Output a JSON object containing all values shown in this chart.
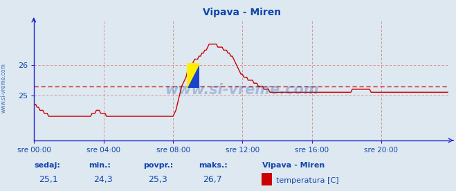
{
  "title": "Vipava - Miren",
  "bg_color": "#dde8f0",
  "plot_bg_color": "#dde8f0",
  "line_color": "#cc0000",
  "grid_color": "#e08080",
  "avg_line_color": "#cc0000",
  "axis_color": "#2222cc",
  "text_color": "#1144aa",
  "watermark": "www.si-vreme.com",
  "yticks": [
    25,
    26
  ],
  "ylim": [
    23.5,
    27.5
  ],
  "xlim": [
    0,
    287
  ],
  "avg_value": 25.3,
  "footer_labels": [
    "sedaj:",
    "min.:",
    "povpr.:",
    "maks.:"
  ],
  "footer_values": [
    "25,1",
    "24,3",
    "25,3",
    "26,7"
  ],
  "legend_title": "Vipava - Miren",
  "legend_label": "temperatura [C]",
  "legend_color": "#cc0000",
  "sidebar_text": "www.si-vreme.com",
  "xtick_positions": [
    0,
    48,
    96,
    144,
    192,
    240
  ],
  "xlabel_ticks": [
    "sre 00:00",
    "sre 04:00",
    "sre 08:00",
    "sre 12:00",
    "sre 16:00",
    "sre 20:00"
  ],
  "temperature_data": [
    24.7,
    24.7,
    24.6,
    24.6,
    24.5,
    24.5,
    24.5,
    24.4,
    24.4,
    24.4,
    24.3,
    24.3,
    24.3,
    24.3,
    24.3,
    24.3,
    24.3,
    24.3,
    24.3,
    24.3,
    24.3,
    24.3,
    24.3,
    24.3,
    24.3,
    24.3,
    24.3,
    24.3,
    24.3,
    24.3,
    24.3,
    24.3,
    24.3,
    24.3,
    24.3,
    24.3,
    24.3,
    24.3,
    24.3,
    24.3,
    24.4,
    24.4,
    24.4,
    24.5,
    24.5,
    24.5,
    24.4,
    24.4,
    24.4,
    24.4,
    24.3,
    24.3,
    24.3,
    24.3,
    24.3,
    24.3,
    24.3,
    24.3,
    24.3,
    24.3,
    24.3,
    24.3,
    24.3,
    24.3,
    24.3,
    24.3,
    24.3,
    24.3,
    24.3,
    24.3,
    24.3,
    24.3,
    24.3,
    24.3,
    24.3,
    24.3,
    24.3,
    24.3,
    24.3,
    24.3,
    24.3,
    24.3,
    24.3,
    24.3,
    24.3,
    24.3,
    24.3,
    24.3,
    24.3,
    24.3,
    24.3,
    24.3,
    24.3,
    24.3,
    24.3,
    24.3,
    24.3,
    24.4,
    24.5,
    24.7,
    24.9,
    25.1,
    25.3,
    25.4,
    25.5,
    25.6,
    25.8,
    25.9,
    26.0,
    26.0,
    26.1,
    26.2,
    26.2,
    26.2,
    26.3,
    26.3,
    26.4,
    26.4,
    26.5,
    26.5,
    26.6,
    26.7,
    26.7,
    26.7,
    26.7,
    26.7,
    26.7,
    26.6,
    26.6,
    26.6,
    26.6,
    26.5,
    26.5,
    26.5,
    26.4,
    26.4,
    26.3,
    26.3,
    26.2,
    26.1,
    26.0,
    25.9,
    25.8,
    25.7,
    25.7,
    25.6,
    25.6,
    25.6,
    25.5,
    25.5,
    25.5,
    25.5,
    25.4,
    25.4,
    25.4,
    25.3,
    25.3,
    25.3,
    25.3,
    25.2,
    25.2,
    25.2,
    25.2,
    25.1,
    25.1,
    25.1,
    25.1,
    25.1,
    25.1,
    25.1,
    25.1,
    25.1,
    25.1,
    25.1,
    25.1,
    25.1,
    25.1,
    25.1,
    25.1,
    25.1,
    25.1,
    25.1,
    25.1,
    25.1,
    25.1,
    25.1,
    25.1,
    25.1,
    25.1,
    25.1,
    25.1,
    25.1,
    25.1,
    25.1,
    25.1,
    25.1,
    25.1,
    25.1,
    25.1,
    25.1,
    25.1,
    25.1,
    25.1,
    25.1,
    25.1,
    25.1,
    25.1,
    25.1,
    25.1,
    25.1,
    25.1,
    25.1,
    25.1,
    25.1,
    25.1,
    25.1,
    25.1,
    25.1,
    25.1,
    25.1,
    25.2,
    25.2,
    25.2,
    25.2,
    25.2,
    25.2,
    25.2,
    25.2,
    25.2,
    25.2,
    25.2,
    25.2,
    25.2,
    25.1,
    25.1,
    25.1,
    25.1,
    25.1,
    25.1,
    25.1,
    25.1,
    25.1,
    25.1,
    25.1,
    25.1,
    25.1,
    25.1,
    25.1,
    25.1,
    25.1,
    25.1,
    25.1,
    25.1,
    25.1,
    25.1,
    25.1,
    25.1,
    25.1,
    25.1,
    25.1,
    25.1,
    25.1,
    25.1,
    25.1,
    25.1,
    25.1,
    25.1,
    25.1,
    25.1,
    25.1,
    25.1,
    25.1,
    25.1,
    25.1,
    25.1,
    25.1,
    25.1,
    25.1,
    25.1,
    25.1,
    25.1,
    25.1,
    25.1,
    25.1,
    25.1,
    25.1,
    25.1
  ]
}
